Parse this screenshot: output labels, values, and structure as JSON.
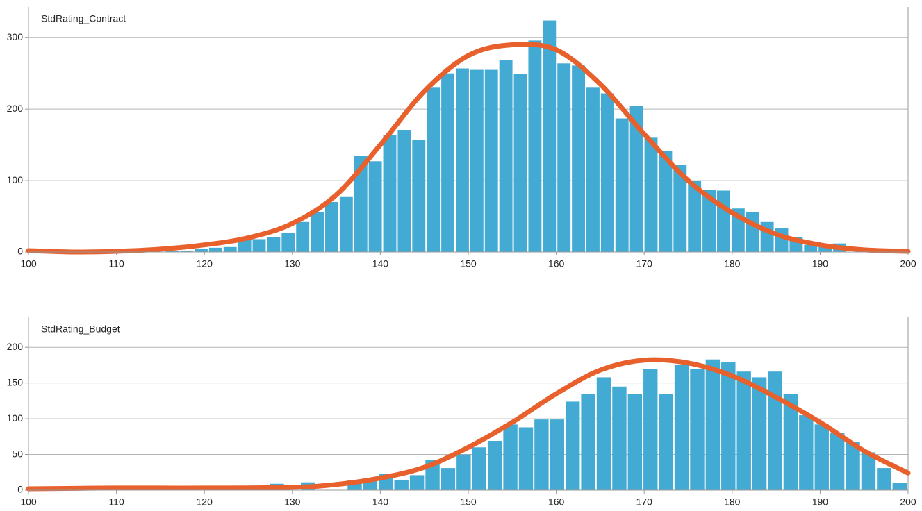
{
  "chart_data": [
    {
      "type": "histogram",
      "title": "StdRating_Contract",
      "color": "#42aad3",
      "bins": [
        115.5,
        117.15,
        118.8,
        120.45,
        122.1,
        123.75,
        125.4,
        127.05,
        128.7,
        130.35,
        132.0,
        133.65,
        135.3,
        136.95,
        138.6,
        140.25,
        141.9,
        143.55,
        145.2,
        146.85,
        148.5,
        150.15,
        151.8,
        153.45,
        155.1,
        156.75,
        158.4,
        160.05,
        161.7,
        163.35,
        165.0,
        166.65,
        168.3,
        169.95,
        171.6,
        173.25,
        174.9,
        176.55,
        178.2,
        179.85,
        181.5,
        183.15,
        184.8,
        186.45,
        188.1,
        189.75,
        191.4,
        193.05
      ],
      "values": [
        1,
        2,
        4,
        6,
        7,
        17,
        18,
        21,
        27,
        42,
        56,
        70,
        77,
        135,
        127,
        164,
        171,
        157,
        230,
        250,
        257,
        255,
        255,
        269,
        249,
        296,
        324,
        264,
        261,
        230,
        222,
        187,
        205,
        160,
        141,
        122,
        100,
        87,
        86,
        61,
        56,
        42,
        33,
        21,
        10,
        9,
        12
      ],
      "curve": {
        "color": "#e8602c",
        "x": [
          100,
          105,
          110,
          115,
          120,
          125,
          130,
          135,
          140,
          145,
          150,
          155,
          160,
          165,
          170,
          175,
          180,
          185,
          190,
          195,
          200
        ],
        "values": [
          2,
          0,
          1,
          4,
          10,
          20,
          40,
          80,
          150,
          225,
          275,
          290,
          283,
          235,
          165,
          100,
          55,
          25,
          10,
          3,
          1
        ]
      },
      "xlim": [
        100,
        200
      ],
      "xticks": [
        100,
        110,
        120,
        130,
        140,
        150,
        160,
        170,
        180,
        190,
        200
      ],
      "ylim": [
        0,
        343
      ],
      "yticks": [
        0,
        100,
        200,
        300
      ],
      "grid": true
    },
    {
      "type": "histogram",
      "title": "StdRating_Budget",
      "color": "#42aad3",
      "bins": [
        127.35,
        129.12,
        130.89,
        132.66,
        134.43,
        136.2,
        137.97,
        139.74,
        141.51,
        143.28,
        145.05,
        146.82,
        148.59,
        150.36,
        152.13,
        153.9,
        155.67,
        157.44,
        159.21,
        160.98,
        162.75,
        164.52,
        166.29,
        168.06,
        169.83,
        171.6,
        173.37,
        175.14,
        176.91,
        178.68,
        180.45,
        182.22,
        183.99,
        185.76,
        187.53,
        189.3,
        191.07,
        192.84,
        194.61,
        196.38,
        198.15,
        199.92
      ],
      "values": [
        9,
        0,
        11,
        0,
        0,
        14,
        17,
        23,
        14,
        21,
        42,
        31,
        50,
        60,
        69,
        92,
        88,
        99,
        99,
        124,
        135,
        158,
        145,
        135,
        170,
        135,
        175,
        170,
        183,
        179,
        166,
        158,
        166,
        135,
        105,
        92,
        80,
        68,
        53,
        31,
        10
      ],
      "curve": {
        "color": "#e8602c",
        "x": [
          100,
          110,
          120,
          130,
          135,
          140,
          145,
          150,
          155,
          160,
          165,
          170,
          175,
          180,
          185,
          190,
          195,
          200
        ],
        "values": [
          2,
          3,
          3,
          4,
          8,
          17,
          32,
          60,
          95,
          135,
          168,
          182,
          178,
          160,
          130,
          95,
          55,
          24
        ]
      },
      "xlim": [
        100,
        200
      ],
      "xticks": [
        100,
        110,
        120,
        130,
        140,
        150,
        160,
        170,
        180,
        190,
        200
      ],
      "ylim": [
        0,
        242
      ],
      "yticks": [
        0,
        50,
        100,
        150,
        200
      ],
      "grid": true
    }
  ]
}
